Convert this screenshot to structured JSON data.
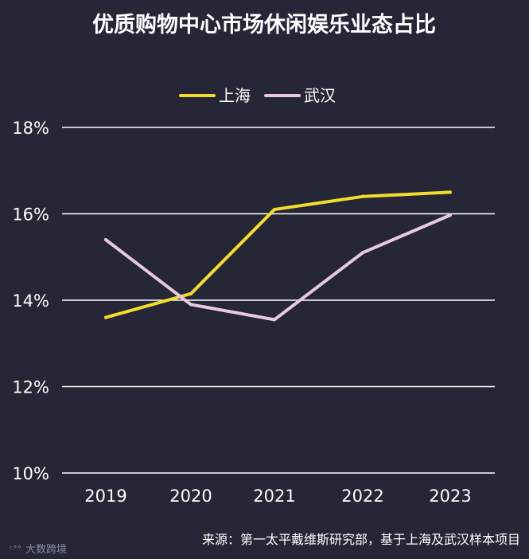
{
  "chart_data": {
    "type": "line",
    "title": "优质购物中心市场休闲娱乐业态占比",
    "x": [
      "2019",
      "2020",
      "2021",
      "2022",
      "2023"
    ],
    "y_ticks": [
      "10%",
      "12%",
      "14%",
      "16%",
      "18%"
    ],
    "ylim": [
      10,
      18
    ],
    "grid": "horizontal",
    "legend_position": "top-center",
    "series": [
      {
        "name": "上海",
        "color": "#f3dc2b",
        "values": [
          13.6,
          14.15,
          16.1,
          16.4,
          16.5
        ]
      },
      {
        "name": "武汉",
        "color": "#e9c9e2",
        "values": [
          15.4,
          13.9,
          13.55,
          15.1,
          15.97
        ]
      }
    ],
    "source": "来源：第一太平戴维斯研究部，基于上海及武汉样本项目"
  },
  "watermark": {
    "logo_text": "大数跨境"
  }
}
